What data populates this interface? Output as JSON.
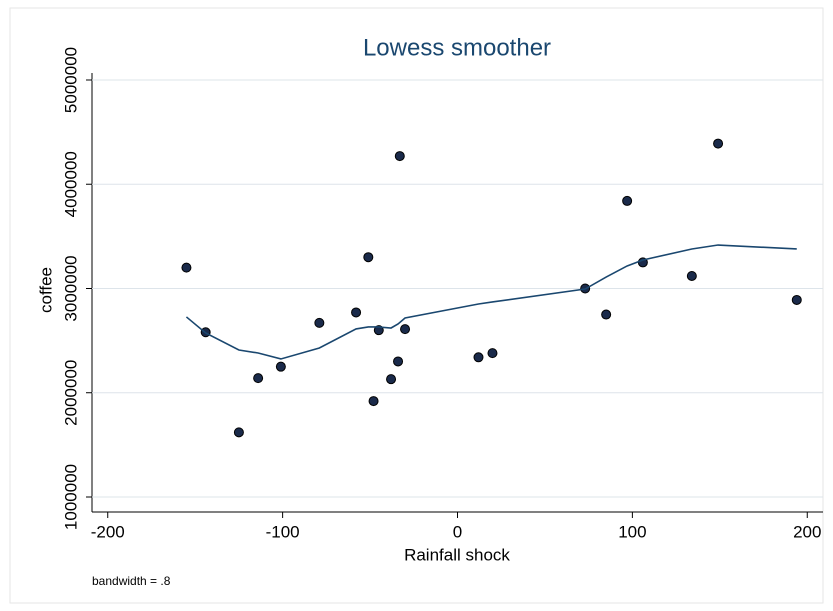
{
  "chart_data": {
    "type": "scatter",
    "title": "Lowess smoother",
    "x_label": "Rainfall shock",
    "y_label": "coffee",
    "note": "bandwidth = .8",
    "xlim": [
      -209,
      209
    ],
    "ylim": [
      856000,
      5067000
    ],
    "xticks": [
      -200,
      -100,
      0,
      100,
      200
    ],
    "yticks": [
      1000000,
      2000000,
      3000000,
      4000000,
      5000000
    ],
    "grid": true,
    "series": [
      {
        "mode": "markers",
        "color": "#1a2a4a",
        "x": [
          -155,
          -144,
          -125,
          -114,
          -101,
          -79,
          -58,
          -51,
          -48,
          -45,
          -38,
          -34,
          -33,
          -30,
          12,
          20,
          73,
          85,
          97,
          106,
          134,
          149,
          194
        ],
        "values": [
          3200000,
          2580000,
          1620000,
          2140000,
          2250000,
          2670000,
          2770000,
          3300000,
          1920000,
          2600000,
          2130000,
          2300000,
          4270000,
          2610000,
          2340000,
          2380000,
          3000000,
          2750000,
          3840000,
          3250000,
          3120000,
          4390000,
          2890000
        ]
      },
      {
        "mode": "line",
        "color": "#1a476f",
        "x": [
          -155,
          -144,
          -125,
          -114,
          -101,
          -79,
          -58,
          -51,
          -45,
          -38,
          -34,
          -30,
          12,
          20,
          73,
          85,
          97,
          106,
          134,
          149,
          194
        ],
        "values": [
          2727000,
          2573000,
          2410000,
          2381000,
          2324000,
          2429000,
          2612000,
          2631000,
          2631000,
          2621000,
          2660000,
          2717000,
          2851000,
          2871000,
          2995000,
          3110000,
          3216000,
          3273000,
          3379000,
          3417000,
          3379000
        ]
      }
    ]
  }
}
